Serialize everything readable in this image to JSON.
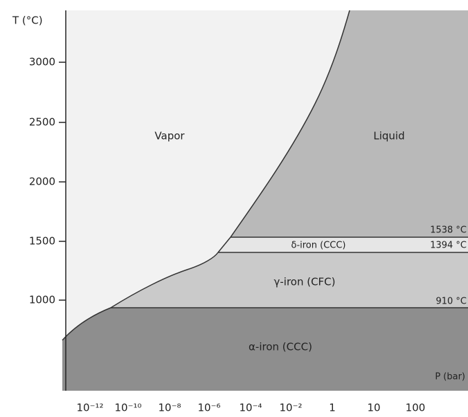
{
  "axes": {
    "y_label": "T (°C)",
    "y_ticks": [
      "3000",
      "2500",
      "2000",
      "1500",
      "1000"
    ],
    "x_label": "P (bar)",
    "x_ticks": [
      "10⁻¹²",
      "10⁻¹⁰",
      "10⁻⁸",
      "10⁻⁶",
      "10⁻⁴",
      "10⁻²",
      "1",
      "10",
      "100"
    ]
  },
  "regions": {
    "vapor": "Vapor",
    "liquid": "Liquid",
    "delta": "δ-iron (CCC)",
    "gamma": "γ-iron (CFC)",
    "alpha": "α-iron (CCC)"
  },
  "temperatures": [
    "1538 °C",
    "1394 °C",
    "910 °C"
  ]
}
